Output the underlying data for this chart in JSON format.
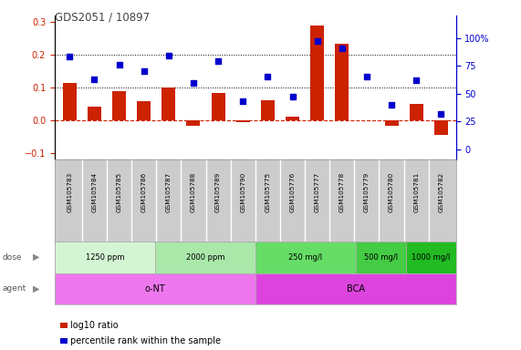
{
  "title": "GDS2051 / 10897",
  "samples": [
    "GSM105783",
    "GSM105784",
    "GSM105785",
    "GSM105786",
    "GSM105787",
    "GSM105788",
    "GSM105789",
    "GSM105790",
    "GSM105775",
    "GSM105776",
    "GSM105777",
    "GSM105778",
    "GSM105779",
    "GSM105780",
    "GSM105781",
    "GSM105782"
  ],
  "log10_ratio": [
    0.115,
    0.042,
    0.09,
    0.058,
    0.1,
    -0.018,
    0.083,
    -0.005,
    0.06,
    0.01,
    0.29,
    0.235,
    0.0,
    -0.018,
    0.05,
    -0.045
  ],
  "percentile_rank": [
    83,
    63,
    76,
    70,
    84,
    60,
    79,
    43,
    65,
    47,
    97,
    91,
    65,
    40,
    62,
    32
  ],
  "dose_groups": [
    {
      "label": "1250 ppm",
      "start": 0,
      "end": 4,
      "color": "#d4f5d4"
    },
    {
      "label": "2000 ppm",
      "start": 4,
      "end": 8,
      "color": "#aae8aa"
    },
    {
      "label": "250 mg/l",
      "start": 8,
      "end": 12,
      "color": "#66dd66"
    },
    {
      "label": "500 mg/l",
      "start": 12,
      "end": 14,
      "color": "#44cc44"
    },
    {
      "label": "1000 mg/l",
      "start": 14,
      "end": 16,
      "color": "#22bb22"
    }
  ],
  "agent_groups": [
    {
      "label": "o-NT",
      "start": 0,
      "end": 8,
      "color": "#ee77ee"
    },
    {
      "label": "BCA",
      "start": 8,
      "end": 16,
      "color": "#dd44dd"
    }
  ],
  "bar_color": "#cc2200",
  "dot_color": "#0000cc",
  "hline_color": "#000000",
  "ylim_left": [
    -0.12,
    0.32
  ],
  "ylim_right": [
    -9,
    120
  ],
  "yticks_left": [
    -0.1,
    0.0,
    0.1,
    0.2,
    0.3
  ],
  "yticks_right": [
    0,
    25,
    50,
    75,
    100
  ],
  "hlines": [
    0.1,
    0.2
  ],
  "bg_color": "#ffffff",
  "tick_label_bg": "#cccccc",
  "label_color": "#555555",
  "title_color": "#444444"
}
